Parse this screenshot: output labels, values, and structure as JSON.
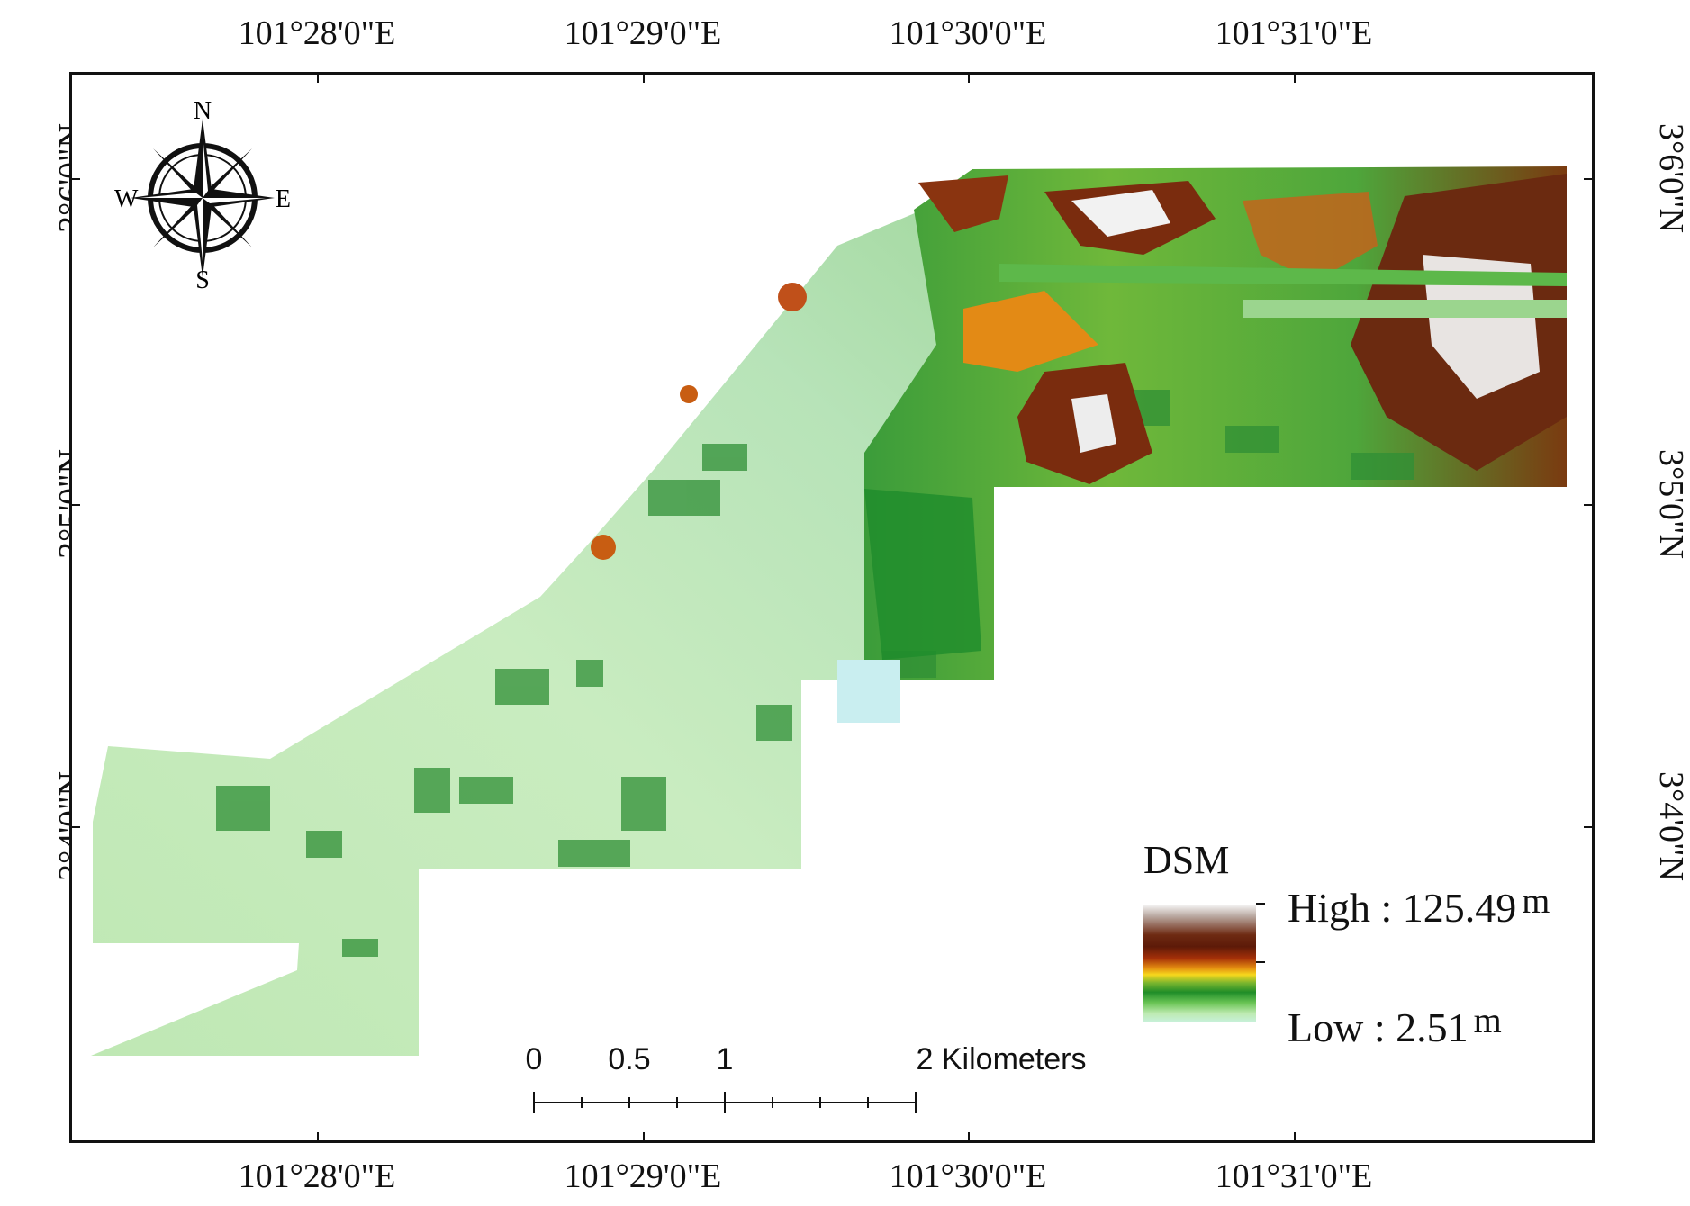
{
  "map": {
    "legend": {
      "title": "DSM",
      "high_label": "High : 125.49",
      "low_label": "Low : 2.51",
      "unit": "m",
      "colors": [
        "#f6f6f6",
        "#6e2a12",
        "#a53008",
        "#e28a10",
        "#f7d81d",
        "#1f8d28",
        "#6ac455",
        "#c7f0d8"
      ]
    },
    "compass": {
      "north": "N",
      "south": "S",
      "east": "E",
      "west": "W"
    },
    "longitude_ticks": [
      "101°28'0\"E",
      "101°29'0\"E",
      "101°30'0\"E",
      "101°31'0\"E"
    ],
    "latitude_ticks": [
      "3°6'0\"N",
      "3°5'0\"N",
      "3°4'0\"N"
    ],
    "scale_bar": {
      "labels": [
        "0",
        "0.5",
        "1",
        "2 Kilometers"
      ]
    }
  }
}
